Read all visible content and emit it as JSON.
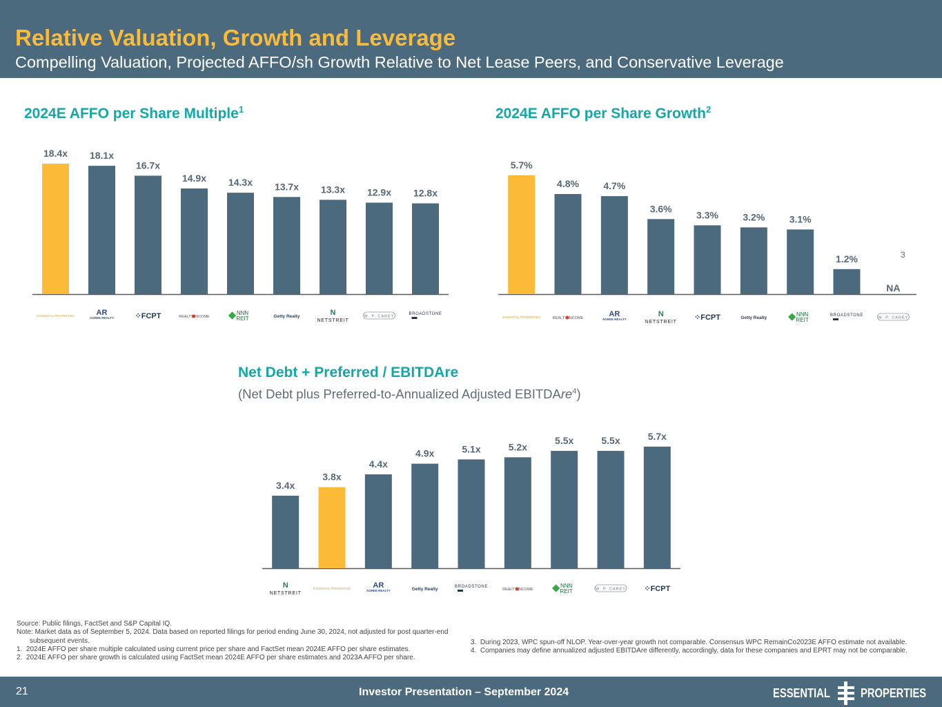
{
  "header": {
    "title": "Relative Valuation, Growth and Leverage",
    "subtitle": "Compelling Valuation, Projected AFFO/sh Growth Relative to Net Lease Peers, and Conservative Leverage"
  },
  "colors": {
    "header_bg": "#4b6a7e",
    "title_accent": "#fbbb38",
    "chart_title": "#14a7a8",
    "bar_default": "#4b6a7e",
    "bar_highlight": "#fbbb38",
    "label": "#566775"
  },
  "chart_data": [
    {
      "type": "bar",
      "title": "2024E AFFO per Share Multiple",
      "title_footnote": "1",
      "categories": [
        "Essential Properties",
        "Agree Realty",
        "FCPT",
        "Realty Income",
        "NNN REIT",
        "Getty Realty",
        "NETSTREIT",
        "W. P. Carey",
        "Broadstone"
      ],
      "values": [
        18.4,
        18.1,
        16.7,
        14.9,
        14.3,
        13.7,
        13.3,
        12.9,
        12.8
      ],
      "value_labels": [
        "18.4x",
        "18.1x",
        "16.7x",
        "14.9x",
        "14.3x",
        "13.7x",
        "13.3x",
        "12.9x",
        "12.8x"
      ],
      "highlight": "Essential Properties",
      "ylim": [
        0,
        20
      ],
      "grid": false,
      "xlabel": "",
      "ylabel": ""
    },
    {
      "type": "bar",
      "title": "2024E AFFO per Share Growth",
      "title_footnote": "2",
      "categories": [
        "Essential Properties",
        "Realty Income",
        "Agree Realty",
        "NETSTREIT",
        "FCPT",
        "Getty Realty",
        "NNN REIT",
        "Broadstone",
        "W. P. Carey"
      ],
      "values": [
        5.7,
        4.8,
        4.7,
        3.6,
        3.3,
        3.2,
        3.1,
        1.2,
        null
      ],
      "value_labels": [
        "5.7%",
        "4.8%",
        "4.7%",
        "3.6%",
        "3.3%",
        "3.2%",
        "3.1%",
        "1.2%",
        "NA"
      ],
      "annotations": [
        {
          "category": "W. P. Carey",
          "text": "3"
        }
      ],
      "highlight": "Essential Properties",
      "ylim": [
        0,
        6.5
      ],
      "grid": false,
      "xlabel": "",
      "ylabel": ""
    },
    {
      "type": "bar",
      "title": "Net Debt + Preferred / EBITDAre",
      "subtitle_pre": "(Net Debt plus Preferred-to-Annualized Adjusted EBITDA",
      "subtitle_italic": "re",
      "subtitle_footnote": "4",
      "subtitle_post": ")",
      "categories": [
        "NETSTREIT",
        "Essential Properties",
        "Agree Realty",
        "Getty Realty",
        "Broadstone",
        "Realty Income",
        "NNN REIT",
        "W. P. Carey",
        "FCPT"
      ],
      "values": [
        3.4,
        3.8,
        4.4,
        4.9,
        5.1,
        5.2,
        5.5,
        5.5,
        5.7
      ],
      "value_labels": [
        "3.4x",
        "3.8x",
        "4.4x",
        "4.9x",
        "5.1x",
        "5.2x",
        "5.5x",
        "5.5x",
        "5.7x"
      ],
      "highlight": "Essential Properties",
      "ylim": [
        0,
        6.5
      ],
      "grid": false,
      "xlabel": "",
      "ylabel": ""
    }
  ],
  "logos": {
    "Essential Properties": "ESSENTIAL PROPERTIES",
    "Agree Realty": "AGREE REALTY",
    "FCPT": "FCPT",
    "Realty Income": "REALTY INCOME",
    "NNN REIT": "NNN REIT",
    "Getty Realty": "Getty Realty",
    "NETSTREIT": "NETSTREIT",
    "W. P. Carey": "W. P. CAREY",
    "Broadstone": "BROADSTONE"
  },
  "footnotes": {
    "source": "Source: Public filings, FactSet and S&P Capital IQ.",
    "note": "Note: Market data as of September 5, 2024. Data based on reported filings for period ending June 30, 2024, not adjusted for post quarter-end subsequent events.",
    "items": [
      {
        "num": "1.",
        "text": "2024E AFFO per share multiple calculated using current price per share and FactSet mean 2024E AFFO per share estimates."
      },
      {
        "num": "2.",
        "text": "2024E AFFO per share growth is calculated using FactSet mean 2024E AFFO per share estimates and 2023A AFFO per share."
      },
      {
        "num": "3.",
        "text": "During 2023, WPC spun-off NLOP. Year-over-year growth not comparable. Consensus WPC RemainCo2023E AFFO estimate not available."
      },
      {
        "num": "4.",
        "text": "Companies may define annualized adjusted EBITDAre differently, accordingly, data for these companies and EPRT may not be comparable."
      }
    ]
  },
  "footer": {
    "page_number": "21",
    "center_text": "Investor Presentation – September 2024",
    "logo_left": "ESSENTIAL",
    "logo_right": "PROPERTIES"
  }
}
